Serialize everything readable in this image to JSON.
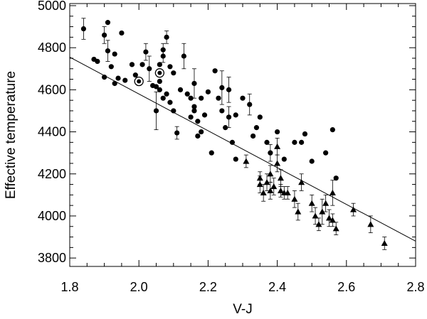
{
  "chart_data": {
    "type": "scatter",
    "xlabel": "V-J",
    "ylabel": "Effective temperature",
    "xlim": [
      1.8,
      2.8
    ],
    "ylim": [
      3760,
      5010
    ],
    "x_ticks": [
      "1.8",
      "2.0",
      "2.2",
      "2.4",
      "2.6",
      "2.8"
    ],
    "y_ticks": [
      "3800",
      "4000",
      "4200",
      "4400",
      "4600",
      "4800",
      "5000"
    ],
    "grid": false,
    "fit_line": {
      "x": [
        1.8,
        2.8
      ],
      "y": [
        4755,
        3880
      ]
    },
    "series": [
      {
        "marker": "circle",
        "points": [
          {
            "x": 1.84,
            "y": 4890,
            "e": 50
          },
          {
            "x": 1.87,
            "y": 4745
          },
          {
            "x": 1.88,
            "y": 4735
          },
          {
            "x": 1.9,
            "y": 4860,
            "e": 40
          },
          {
            "x": 1.91,
            "y": 4920
          },
          {
            "x": 1.91,
            "y": 4785,
            "e": 50
          },
          {
            "x": 1.92,
            "y": 4710
          },
          {
            "x": 1.93,
            "y": 4770
          },
          {
            "x": 1.94,
            "y": 4655
          },
          {
            "x": 1.95,
            "y": 4870
          },
          {
            "x": 1.9,
            "y": 4660
          },
          {
            "x": 1.93,
            "y": 4630
          },
          {
            "x": 1.96,
            "y": 4645
          },
          {
            "x": 1.98,
            "y": 4720
          },
          {
            "x": 1.99,
            "y": 4670
          },
          {
            "x": 2.0,
            "y": 4630
          },
          {
            "x": 2.01,
            "y": 4720
          },
          {
            "x": 2.02,
            "y": 4780,
            "e": 40
          },
          {
            "x": 2.03,
            "y": 4700,
            "e": 60
          },
          {
            "x": 2.04,
            "y": 4620
          },
          {
            "x": 2.05,
            "y": 4615
          },
          {
            "x": 2.06,
            "y": 4720
          },
          {
            "x": 2.07,
            "y": 4790,
            "e": 30
          },
          {
            "x": 2.08,
            "y": 4850,
            "e": 30
          },
          {
            "x": 2.07,
            "y": 4760,
            "e": 30
          },
          {
            "x": 2.06,
            "y": 4640
          },
          {
            "x": 2.09,
            "y": 4710
          },
          {
            "x": 2.1,
            "y": 4680
          },
          {
            "x": 2.05,
            "y": 4500,
            "e": 90
          },
          {
            "x": 2.06,
            "y": 4600
          },
          {
            "x": 2.07,
            "y": 4560
          },
          {
            "x": 2.08,
            "y": 4580
          },
          {
            "x": 2.09,
            "y": 4540
          },
          {
            "x": 2.1,
            "y": 4500
          },
          {
            "x": 2.11,
            "y": 4395,
            "e": 30
          },
          {
            "x": 2.12,
            "y": 4600
          },
          {
            "x": 2.13,
            "y": 4760,
            "e": 60
          },
          {
            "x": 2.14,
            "y": 4580
          },
          {
            "x": 2.15,
            "y": 4560
          },
          {
            "x": 2.16,
            "y": 4500
          },
          {
            "x": 2.16,
            "y": 4630,
            "e": 70
          },
          {
            "x": 2.17,
            "y": 4450
          },
          {
            "x": 2.17,
            "y": 4380
          },
          {
            "x": 2.18,
            "y": 4400
          },
          {
            "x": 2.18,
            "y": 4560
          },
          {
            "x": 2.15,
            "y": 4470
          },
          {
            "x": 2.16,
            "y": 4520
          },
          {
            "x": 2.19,
            "y": 4480
          },
          {
            "x": 2.2,
            "y": 4590
          },
          {
            "x": 2.21,
            "y": 4300
          },
          {
            "x": 2.22,
            "y": 4690
          },
          {
            "x": 2.23,
            "y": 4560
          },
          {
            "x": 2.24,
            "y": 4610,
            "e": 80
          },
          {
            "x": 2.24,
            "y": 4500
          },
          {
            "x": 2.25,
            "y": 4420
          },
          {
            "x": 2.26,
            "y": 4600,
            "e": 60
          },
          {
            "x": 2.26,
            "y": 4470,
            "e": 50
          },
          {
            "x": 2.27,
            "y": 4350
          },
          {
            "x": 2.28,
            "y": 4480
          },
          {
            "x": 2.28,
            "y": 4270
          },
          {
            "x": 2.3,
            "y": 4560
          },
          {
            "x": 2.32,
            "y": 4530,
            "e": 50
          },
          {
            "x": 2.33,
            "y": 4380
          },
          {
            "x": 2.34,
            "y": 4420
          },
          {
            "x": 2.35,
            "y": 4470
          },
          {
            "x": 2.37,
            "y": 4350
          },
          {
            "x": 2.38,
            "y": 4300,
            "e": 40
          },
          {
            "x": 2.4,
            "y": 4400
          },
          {
            "x": 2.42,
            "y": 4270
          },
          {
            "x": 2.45,
            "y": 4350
          },
          {
            "x": 2.47,
            "y": 4350
          },
          {
            "x": 2.48,
            "y": 4390
          },
          {
            "x": 2.5,
            "y": 4260
          },
          {
            "x": 2.54,
            "y": 4300
          },
          {
            "x": 2.56,
            "y": 4410
          },
          {
            "x": 2.57,
            "y": 4180
          }
        ]
      },
      {
        "marker": "circled-dot",
        "points": [
          {
            "x": 2.0,
            "y": 4640
          },
          {
            "x": 2.06,
            "y": 4680
          }
        ]
      },
      {
        "marker": "triangle",
        "points": [
          {
            "x": 2.31,
            "y": 4260,
            "e": 30
          },
          {
            "x": 2.35,
            "y": 4150,
            "e": 40
          },
          {
            "x": 2.36,
            "y": 4110,
            "e": 40
          },
          {
            "x": 2.37,
            "y": 4160,
            "e": 40
          },
          {
            "x": 2.38,
            "y": 4120,
            "e": 40
          },
          {
            "x": 2.39,
            "y": 4140,
            "e": 40
          },
          {
            "x": 2.4,
            "y": 4330,
            "e": 40
          },
          {
            "x": 2.4,
            "y": 4250,
            "e": 40
          },
          {
            "x": 2.41,
            "y": 4180,
            "e": 40
          },
          {
            "x": 2.41,
            "y": 4120,
            "e": 30
          },
          {
            "x": 2.42,
            "y": 4110,
            "e": 30
          },
          {
            "x": 2.43,
            "y": 4110,
            "e": 30
          },
          {
            "x": 2.45,
            "y": 4080,
            "e": 40
          },
          {
            "x": 2.46,
            "y": 4020,
            "e": 40
          },
          {
            "x": 2.47,
            "y": 4160,
            "e": 40
          },
          {
            "x": 2.5,
            "y": 4060,
            "e": 40
          },
          {
            "x": 2.51,
            "y": 4000,
            "e": 40
          },
          {
            "x": 2.52,
            "y": 3960,
            "e": 30
          },
          {
            "x": 2.53,
            "y": 4020,
            "e": 60
          },
          {
            "x": 2.54,
            "y": 4060,
            "e": 40
          },
          {
            "x": 2.55,
            "y": 3990,
            "e": 40
          },
          {
            "x": 2.56,
            "y": 3980,
            "e": 30
          },
          {
            "x": 2.57,
            "y": 3940,
            "e": 30
          },
          {
            "x": 2.56,
            "y": 4110,
            "e": 60
          },
          {
            "x": 2.62,
            "y": 4030,
            "e": 30
          },
          {
            "x": 2.67,
            "y": 3960,
            "e": 40
          },
          {
            "x": 2.71,
            "y": 3870,
            "e": 30
          },
          {
            "x": 2.38,
            "y": 4200,
            "e": 40
          },
          {
            "x": 2.35,
            "y": 4180,
            "e": 30
          }
        ]
      }
    ]
  }
}
